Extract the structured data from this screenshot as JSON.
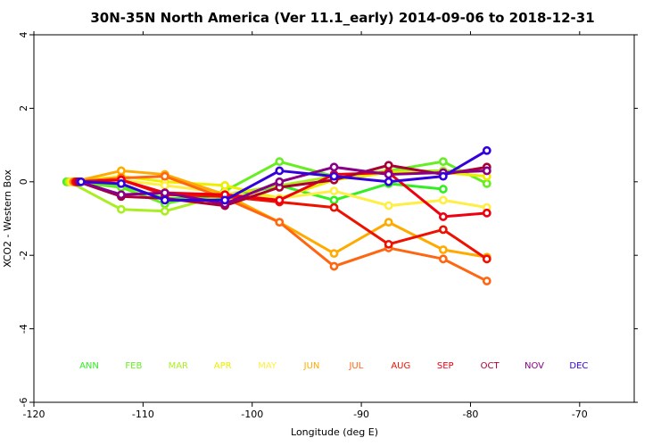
{
  "chart_data": {
    "type": "line",
    "title": "30N-35N North America (Ver 11.1_early)   2014-09-06 to 2018-12-31",
    "xlabel": "Longitude (deg E)",
    "ylabel": "XCO2 - Western Box",
    "xlim": [
      -120,
      -65
    ],
    "ylim": [
      -6,
      4
    ],
    "xticks": [
      -120,
      -110,
      -100,
      -90,
      -80,
      -70
    ],
    "yticks": [
      -6,
      -4,
      -2,
      0,
      2,
      4
    ],
    "x": [
      -117,
      -112,
      -108,
      -102.5,
      -97.5,
      -92.5,
      -87.5,
      -82.5,
      -78.5
    ],
    "series": [
      {
        "name": "ANN",
        "color": "#33ee22",
        "values": [
          0.0,
          -0.1,
          -0.45,
          -0.45,
          -0.1,
          -0.5,
          -0.05,
          -0.2,
          null
        ]
      },
      {
        "name": "FEB",
        "color": "#66ee22",
        "values": [
          0.0,
          -0.15,
          -0.6,
          -0.25,
          0.55,
          0.15,
          0.3,
          0.55,
          -0.05
        ]
      },
      {
        "name": "MAR",
        "color": "#aaee22",
        "values": [
          0.0,
          -0.75,
          -0.8,
          -0.35,
          -0.1,
          0.15,
          0.3,
          0.3,
          0.3
        ]
      },
      {
        "name": "APR",
        "color": "#eeee00",
        "values": [
          0.0,
          0.15,
          0.0,
          -0.1,
          -0.45,
          0.05,
          0.25,
          0.25,
          0.15
        ]
      },
      {
        "name": "MAY",
        "color": "#ffee44",
        "values": [
          0.0,
          0.05,
          -0.1,
          -0.3,
          -0.45,
          -0.25,
          -0.65,
          -0.5,
          -0.7
        ]
      },
      {
        "name": "JUN",
        "color": "#ffaa00",
        "values": [
          0.0,
          0.3,
          0.2,
          -0.35,
          -1.1,
          -1.95,
          -1.1,
          -1.85,
          -2.05
        ]
      },
      {
        "name": "JUL",
        "color": "#ff6611",
        "values": [
          0.0,
          0.1,
          0.15,
          -0.45,
          -1.1,
          -2.3,
          -1.8,
          -2.1,
          -2.7
        ]
      },
      {
        "name": "AUG",
        "color": "#ee1100",
        "values": [
          0.0,
          0.05,
          -0.35,
          -0.4,
          -0.55,
          -0.7,
          -1.7,
          -1.3,
          -2.1
        ]
      },
      {
        "name": "SEP",
        "color": "#ee0011",
        "values": [
          0.0,
          0.05,
          -0.3,
          -0.35,
          -0.5,
          0.2,
          0.25,
          -0.95,
          -0.85
        ]
      },
      {
        "name": "OCT",
        "color": "#aa0033",
        "values": [
          0.0,
          -0.4,
          -0.45,
          -0.65,
          -0.15,
          0.05,
          0.45,
          0.2,
          0.4
        ]
      },
      {
        "name": "NOV",
        "color": "#880088",
        "values": [
          0.0,
          -0.35,
          -0.3,
          -0.6,
          0.0,
          0.4,
          0.2,
          0.25,
          0.3
        ]
      },
      {
        "name": "DEC",
        "color": "#3300dd",
        "values": [
          0.0,
          -0.05,
          -0.5,
          -0.5,
          0.3,
          0.15,
          0.0,
          0.15,
          0.85
        ]
      }
    ],
    "legend": "bottom"
  }
}
